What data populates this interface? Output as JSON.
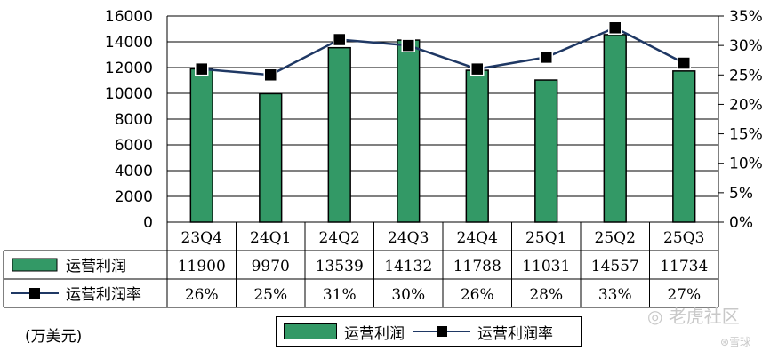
{
  "chart_data": {
    "type": "bar",
    "categories": [
      "23Q4",
      "24Q1",
      "24Q2",
      "24Q3",
      "24Q4",
      "25Q1",
      "25Q2",
      "25Q3"
    ],
    "series": [
      {
        "name": "运营利润",
        "type": "bar",
        "axis": "left",
        "color": "#339966",
        "values": [
          11900,
          9970,
          13539,
          14132,
          11788,
          11031,
          14557,
          11734
        ]
      },
      {
        "name": "运营利润率",
        "type": "line",
        "axis": "right",
        "color": "#1f3864",
        "values": [
          26,
          25,
          31,
          30,
          26,
          28,
          33,
          27
        ]
      }
    ],
    "table_values": {
      "bar": [
        "11900",
        "9970",
        "13539",
        "14132",
        "11788",
        "11031",
        "14557",
        "11734"
      ],
      "line": [
        "26%",
        "25%",
        "31%",
        "30%",
        "26%",
        "28%",
        "33%",
        "27%"
      ]
    },
    "y_left": {
      "min": 0,
      "max": 16000,
      "ticks": [
        "0",
        "2000",
        "4000",
        "6000",
        "8000",
        "10000",
        "12000",
        "14000",
        "16000"
      ]
    },
    "y_right": {
      "min": 0,
      "max": 35,
      "ticks": [
        "0%",
        "5%",
        "10%",
        "15%",
        "20%",
        "25%",
        "30%",
        "35%"
      ]
    },
    "grid": "horizontal",
    "legend_position": "bottom",
    "unit": "(万美元)"
  },
  "watermark": {
    "text": "老虎社区",
    "sub": "雪球"
  }
}
